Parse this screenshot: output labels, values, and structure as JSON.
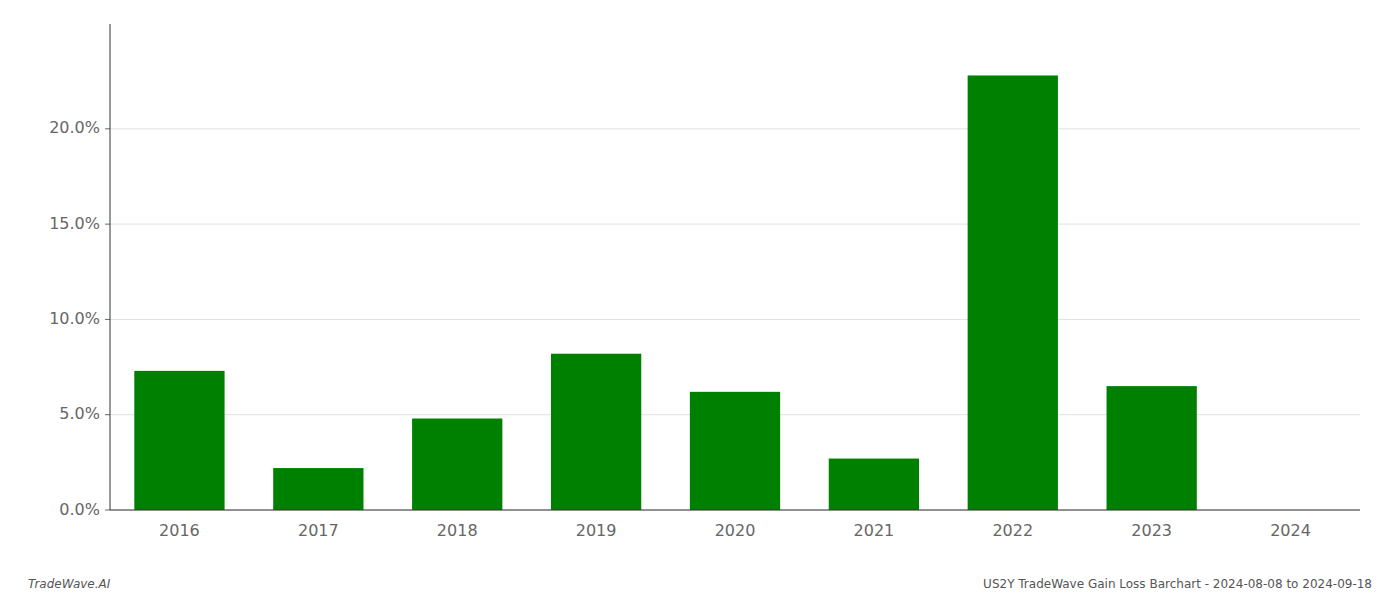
{
  "chart_data": {
    "type": "bar",
    "categories": [
      "2016",
      "2017",
      "2018",
      "2019",
      "2020",
      "2021",
      "2022",
      "2023",
      "2024"
    ],
    "values": [
      0.073,
      0.022,
      0.048,
      0.082,
      0.062,
      0.027,
      0.228,
      0.065,
      0.0
    ],
    "color": "#008000",
    "ylim": [
      0,
      0.255
    ],
    "yticks": [
      {
        "value": 0.0,
        "label": "0.0%"
      },
      {
        "value": 0.05,
        "label": "5.0%"
      },
      {
        "value": 0.1,
        "label": "10.0%"
      },
      {
        "value": 0.15,
        "label": "15.0%"
      },
      {
        "value": 0.2,
        "label": "20.0%"
      }
    ],
    "grid": true,
    "annotations": [
      "TradeWave.AI",
      "US2Y TradeWave Gain Loss Barchart - 2024-08-08 to 2024-09-18"
    ]
  }
}
